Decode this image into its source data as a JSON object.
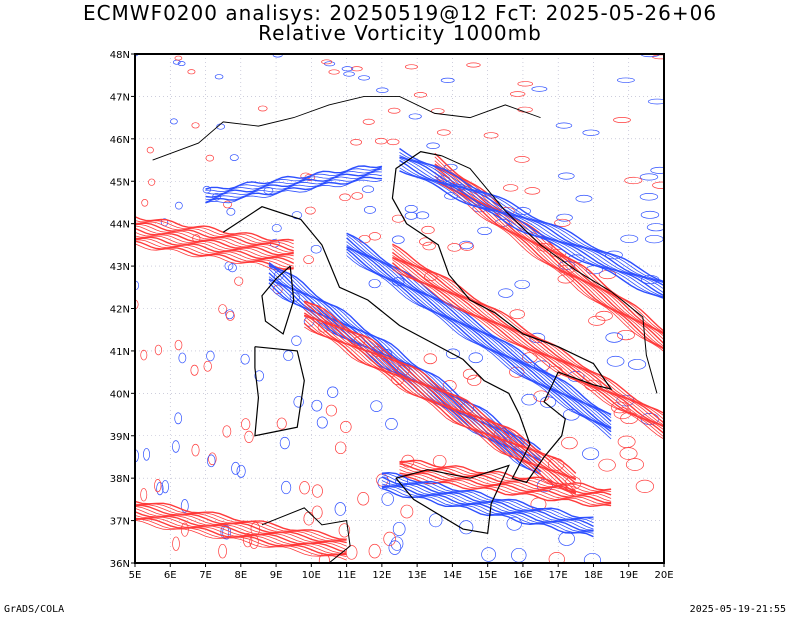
{
  "header": {
    "title_line1": "ECMWF0200 analisys: 20250519@12 FcT: 2025-05-26+06",
    "title_line2": "Relative Vorticity 1000mb"
  },
  "map": {
    "projection": "lat-lon",
    "lon_range": [
      5,
      20
    ],
    "lat_range": [
      36,
      48
    ],
    "lon_ticks": [
      "5E",
      "6E",
      "7E",
      "8E",
      "9E",
      "10E",
      "11E",
      "12E",
      "13E",
      "14E",
      "15E",
      "16E",
      "17E",
      "18E",
      "19E",
      "20E"
    ],
    "lat_ticks": [
      "36N",
      "37N",
      "38N",
      "39N",
      "40N",
      "41N",
      "42N",
      "43N",
      "44N",
      "45N",
      "46N",
      "47N",
      "48N"
    ],
    "field": "Relative Vorticity",
    "level": "1000mb",
    "colors": {
      "positive_contours": "#ff3b3b",
      "negative_contours": "#2e50ff",
      "coastline": "#000000",
      "grid": "#b0b0c8"
    }
  },
  "footer": {
    "left": "GrADS/COLA",
    "right": "2025-05-19-21:55"
  }
}
